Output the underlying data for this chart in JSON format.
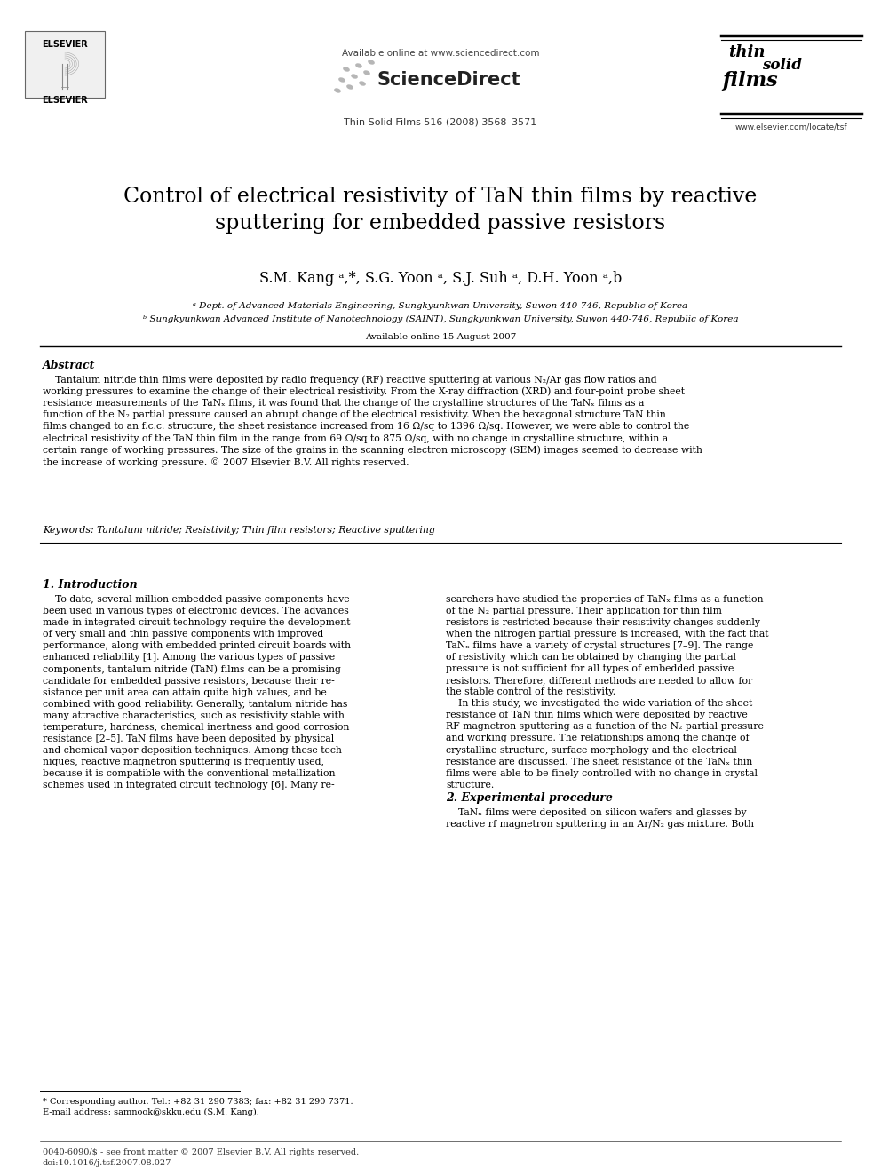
{
  "bg_color": "#ffffff",
  "title": "Control of electrical resistivity of TaN thin films by reactive\nsputtering for embedded passive resistors",
  "authors": "S.M. Kang ᵃ,*, S.G. Yoon ᵃ, S.J. Suh ᵃ, D.H. Yoon ᵃ,b",
  "affil_a": "ᵃ Dept. of Advanced Materials Engineering, Sungkyunkwan University, Suwon 440-746, Republic of Korea",
  "affil_b": "ᵇ Sungkyunkwan Advanced Institute of Nanotechnology (SAINT), Sungkyunkwan University, Suwon 440-746, Republic of Korea",
  "available_online": "Available online 15 August 2007",
  "journal_ref": "Thin Solid Films 516 (2008) 3568–3571",
  "sd_url": "Available online at www.sciencedirect.com",
  "journal_url": "www.elsevier.com/locate/tsf",
  "abstract_title": "Abstract",
  "keywords": "Keywords: Tantalum nitride; Resistivity; Thin film resistors; Reactive sputtering",
  "section1_title": "1. Introduction",
  "section2_title": "2. Experimental procedure",
  "footnote1": "* Corresponding author. Tel.: +82 31 290 7383; fax: +82 31 290 7371.",
  "footnote2": "E-mail address: samnook@skku.edu (S.M. Kang).",
  "footer1": "0040-6090/$ - see front matter © 2007 Elsevier B.V. All rights reserved.",
  "footer2": "doi:10.1016/j.tsf.2007.08.027",
  "abstract_body": "    Tantalum nitride thin films were deposited by radio frequency (RF) reactive sputtering at various N₂/Ar gas flow ratios and working pressures to examine the change of their electrical resistivity. From the X-ray diffraction (XRD) and four-point probe sheet resistance measurements of the TaNₓ films, it was found that the change of the crystalline structures of the TaNₓ films as a function of the N₂ partial pressure caused an abrupt change of the electrical resistivity. When the hexagonal structure TaN thin films changed to an f.c.c. structure, the sheet resistance increased from 16 Ω/sq to 1396 Ω/sq. However, we were able to control the electrical resistivity of the TaN thin film in the range from 69 Ω/sq to 875 Ω/sq, with no change in crystalline structure, within a certain range of working pressures. The size of the grains in the scanning electron microscopy (SEM) images seemed to decrease with the increase of working pressure.\n© 2007 Elsevier B.V. All rights reserved.",
  "col1_lines": [
    "    To date, several million embedded passive components have",
    "been used in various types of electronic devices. The advances",
    "made in integrated circuit technology require the development",
    "of very small and thin passive components with improved",
    "performance, along with embedded printed circuit boards with",
    "enhanced reliability [1]. Among the various types of passive",
    "components, tantalum nitride (TaN) films can be a promising",
    "candidate for embedded passive resistors, because their re-",
    "sistance per unit area can attain quite high values, and be",
    "combined with good reliability. Generally, tantalum nitride has",
    "many attractive characteristics, such as resistivity stable with",
    "temperature, hardness, chemical inertness and good corrosion",
    "resistance [2–5]. TaN films have been deposited by physical",
    "and chemical vapor deposition techniques. Among these tech-",
    "niques, reactive magnetron sputtering is frequently used,",
    "because it is compatible with the conventional metallization",
    "schemes used in integrated circuit technology [6]. Many re-"
  ],
  "col2_lines": [
    "searchers have studied the properties of TaNₓ films as a function",
    "of the N₂ partial pressure. Their application for thin film",
    "resistors is restricted because their resistivity changes suddenly",
    "when the nitrogen partial pressure is increased, with the fact that",
    "TaNₓ films have a variety of crystal structures [7–9]. The range",
    "of resistivity which can be obtained by changing the partial",
    "pressure is not sufficient for all types of embedded passive",
    "resistors. Therefore, different methods are needed to allow for",
    "the stable control of the resistivity.",
    "    In this study, we investigated the wide variation of the sheet",
    "resistance of TaN thin films which were deposited by reactive",
    "RF magnetron sputtering as a function of the N₂ partial pressure",
    "and working pressure. The relationships among the change of",
    "crystalline structure, surface morphology and the electrical",
    "resistance are discussed. The sheet resistance of the TaNₓ thin",
    "films were able to be finely controlled with no change in crystal",
    "structure."
  ],
  "sec2_lines": [
    "    TaNₓ films were deposited on silicon wafers and glasses by",
    "reactive rf magnetron sputtering in an Ar/N₂ gas mixture. Both"
  ]
}
